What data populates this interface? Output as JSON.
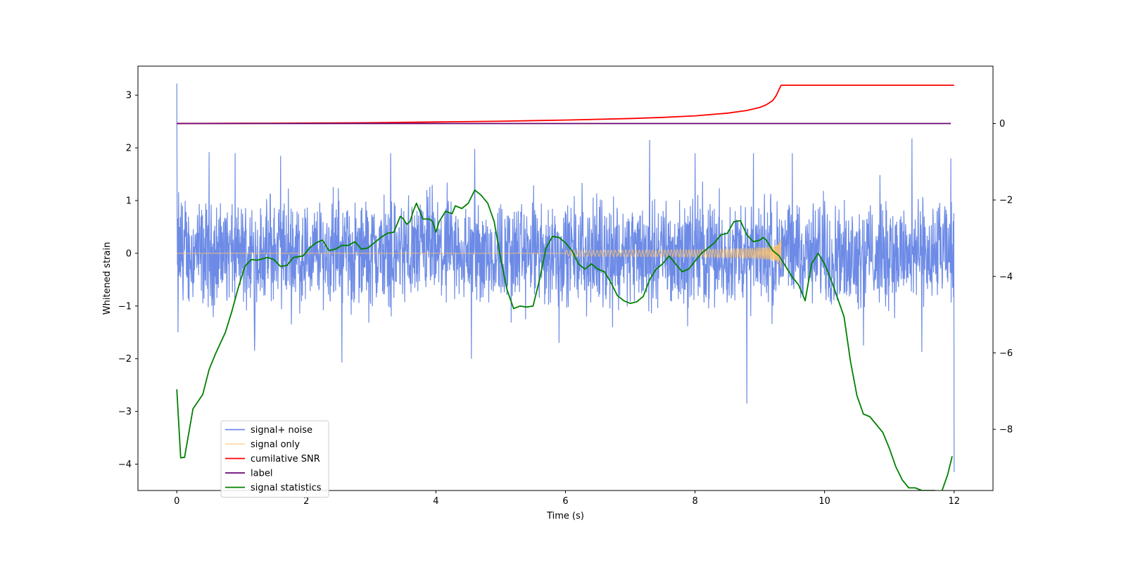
{
  "chart_data": {
    "type": "line",
    "title": "",
    "xlabel": "Time (s)",
    "ylabel": "Whitened strain",
    "y2label": "",
    "xlim": [
      -0.6,
      12.6
    ],
    "ylim": [
      -4.5,
      3.55
    ],
    "y2lim": [
      -9.6,
      1.5
    ],
    "xticks": [
      0,
      2,
      4,
      6,
      8,
      10,
      12
    ],
    "yticks": [
      -4,
      -3,
      -2,
      -1,
      0,
      1,
      2,
      3
    ],
    "y2ticks": [
      -8,
      -6,
      -4,
      -2,
      0
    ],
    "grid": false,
    "legend_position": "lower-left",
    "colors": {
      "noise": "#6d8be6",
      "signal": "#ffc36b",
      "snr": "#ff0000",
      "label": "#6a0572",
      "stats": "#008000"
    },
    "series": [
      {
        "key": "noise",
        "name": "signal+ noise",
        "axis": "left",
        "kind": "noise",
        "x_range": [
          0,
          12
        ],
        "typical_range": [
          -1.0,
          1.0
        ],
        "spikes": [
          [
            0.0,
            3.22
          ],
          [
            0.02,
            -1.5
          ],
          [
            0.5,
            1.92
          ],
          [
            0.9,
            1.9
          ],
          [
            1.2,
            -1.85
          ],
          [
            1.6,
            1.85
          ],
          [
            2.55,
            -2.07
          ],
          [
            3.3,
            1.9
          ],
          [
            4.6,
            1.98
          ],
          [
            4.55,
            -2.0
          ],
          [
            5.9,
            -1.7
          ],
          [
            7.3,
            2.15
          ],
          [
            8.0,
            1.9
          ],
          [
            8.8,
            -2.85
          ],
          [
            8.9,
            1.9
          ],
          [
            9.5,
            1.9
          ],
          [
            10.6,
            -1.75
          ],
          [
            11.35,
            2.18
          ],
          [
            11.5,
            -1.87
          ],
          [
            11.95,
            1.8
          ],
          [
            12.0,
            -4.15
          ]
        ]
      },
      {
        "key": "signal",
        "name": "signal only",
        "axis": "left",
        "kind": "chirp",
        "x_range": [
          0,
          9.33
        ],
        "peak_amplitude": 0.35
      },
      {
        "key": "snr",
        "name": "cumilative SNR",
        "axis": "right",
        "x": [
          0,
          1,
          2,
          3,
          4,
          5,
          6,
          7,
          7.5,
          8,
          8.5,
          8.8,
          9.0,
          9.1,
          9.2,
          9.25,
          9.3,
          9.33,
          12
        ],
        "y": [
          0,
          0.005,
          0.01,
          0.02,
          0.04,
          0.06,
          0.09,
          0.13,
          0.16,
          0.2,
          0.27,
          0.34,
          0.42,
          0.49,
          0.6,
          0.72,
          0.9,
          1.0,
          1.0
        ]
      },
      {
        "key": "label",
        "name": "label",
        "axis": "right",
        "x": [
          0,
          11.95
        ],
        "y": [
          0,
          0
        ]
      },
      {
        "key": "stats",
        "name": "signal statistics",
        "axis": "left",
        "x": [
          0.0,
          0.06,
          0.12,
          0.25,
          0.4,
          0.5,
          0.6,
          0.75,
          0.85,
          0.95,
          1.05,
          1.15,
          1.25,
          1.4,
          1.5,
          1.6,
          1.7,
          1.8,
          1.95,
          2.05,
          2.15,
          2.25,
          2.35,
          2.45,
          2.55,
          2.65,
          2.75,
          2.85,
          2.95,
          3.05,
          3.15,
          3.25,
          3.35,
          3.45,
          3.5,
          3.55,
          3.6,
          3.65,
          3.7,
          3.8,
          3.9,
          3.95,
          4.0,
          4.05,
          4.15,
          4.25,
          4.3,
          4.4,
          4.5,
          4.6,
          4.7,
          4.8,
          4.9,
          5.0,
          5.1,
          5.2,
          5.3,
          5.4,
          5.5,
          5.6,
          5.7,
          5.8,
          5.9,
          6.0,
          6.1,
          6.2,
          6.3,
          6.4,
          6.5,
          6.6,
          6.7,
          6.8,
          6.9,
          7.0,
          7.1,
          7.2,
          7.3,
          7.4,
          7.5,
          7.6,
          7.7,
          7.8,
          7.9,
          8.0,
          8.1,
          8.2,
          8.3,
          8.4,
          8.5,
          8.6,
          8.7,
          8.8,
          8.9,
          9.0,
          9.05,
          9.1,
          9.2,
          9.3,
          9.4,
          9.5,
          9.6,
          9.7,
          9.8,
          9.9,
          10.0,
          10.1,
          10.2,
          10.3,
          10.4,
          10.5,
          10.6,
          10.7,
          10.8,
          10.9,
          11.0,
          11.1,
          11.2,
          11.3,
          11.4,
          11.5,
          11.6,
          11.7,
          11.8,
          11.9,
          11.97
        ],
        "y": [
          -2.58,
          -3.88,
          -3.87,
          -2.95,
          -2.68,
          -2.2,
          -1.9,
          -1.5,
          -1.1,
          -0.65,
          -0.25,
          -0.12,
          -0.13,
          -0.08,
          -0.12,
          -0.25,
          -0.23,
          -0.08,
          -0.05,
          0.1,
          0.2,
          0.25,
          0.05,
          0.08,
          0.15,
          0.15,
          0.22,
          0.08,
          0.1,
          0.2,
          0.3,
          0.38,
          0.4,
          0.7,
          0.65,
          0.55,
          0.6,
          0.8,
          0.95,
          0.65,
          0.65,
          0.6,
          0.4,
          0.6,
          0.8,
          0.75,
          0.9,
          0.85,
          0.95,
          1.2,
          1.1,
          0.95,
          0.6,
          -0.1,
          -0.7,
          -1.05,
          -1.0,
          -1.02,
          -1.0,
          -0.5,
          0.1,
          0.32,
          0.3,
          0.2,
          0.05,
          -0.2,
          -0.3,
          -0.2,
          -0.3,
          -0.35,
          -0.55,
          -0.8,
          -0.9,
          -0.95,
          -0.92,
          -0.82,
          -0.5,
          -0.3,
          -0.2,
          -0.05,
          -0.2,
          -0.35,
          -0.3,
          -0.15,
          0.0,
          0.1,
          0.2,
          0.35,
          0.38,
          0.6,
          0.62,
          0.35,
          0.22,
          0.25,
          0.3,
          0.25,
          0.05,
          -0.05,
          -0.25,
          -0.45,
          -0.6,
          -0.9,
          -0.2,
          0.0,
          -0.2,
          -0.5,
          -0.85,
          -1.2,
          -2.05,
          -2.7,
          -3.05,
          -3.1,
          -3.25,
          -3.4,
          -3.7,
          -4.05,
          -4.3,
          -4.45,
          -4.45,
          -4.5,
          -4.5,
          -4.5,
          -4.55,
          -4.2,
          -3.85
        ]
      }
    ]
  }
}
